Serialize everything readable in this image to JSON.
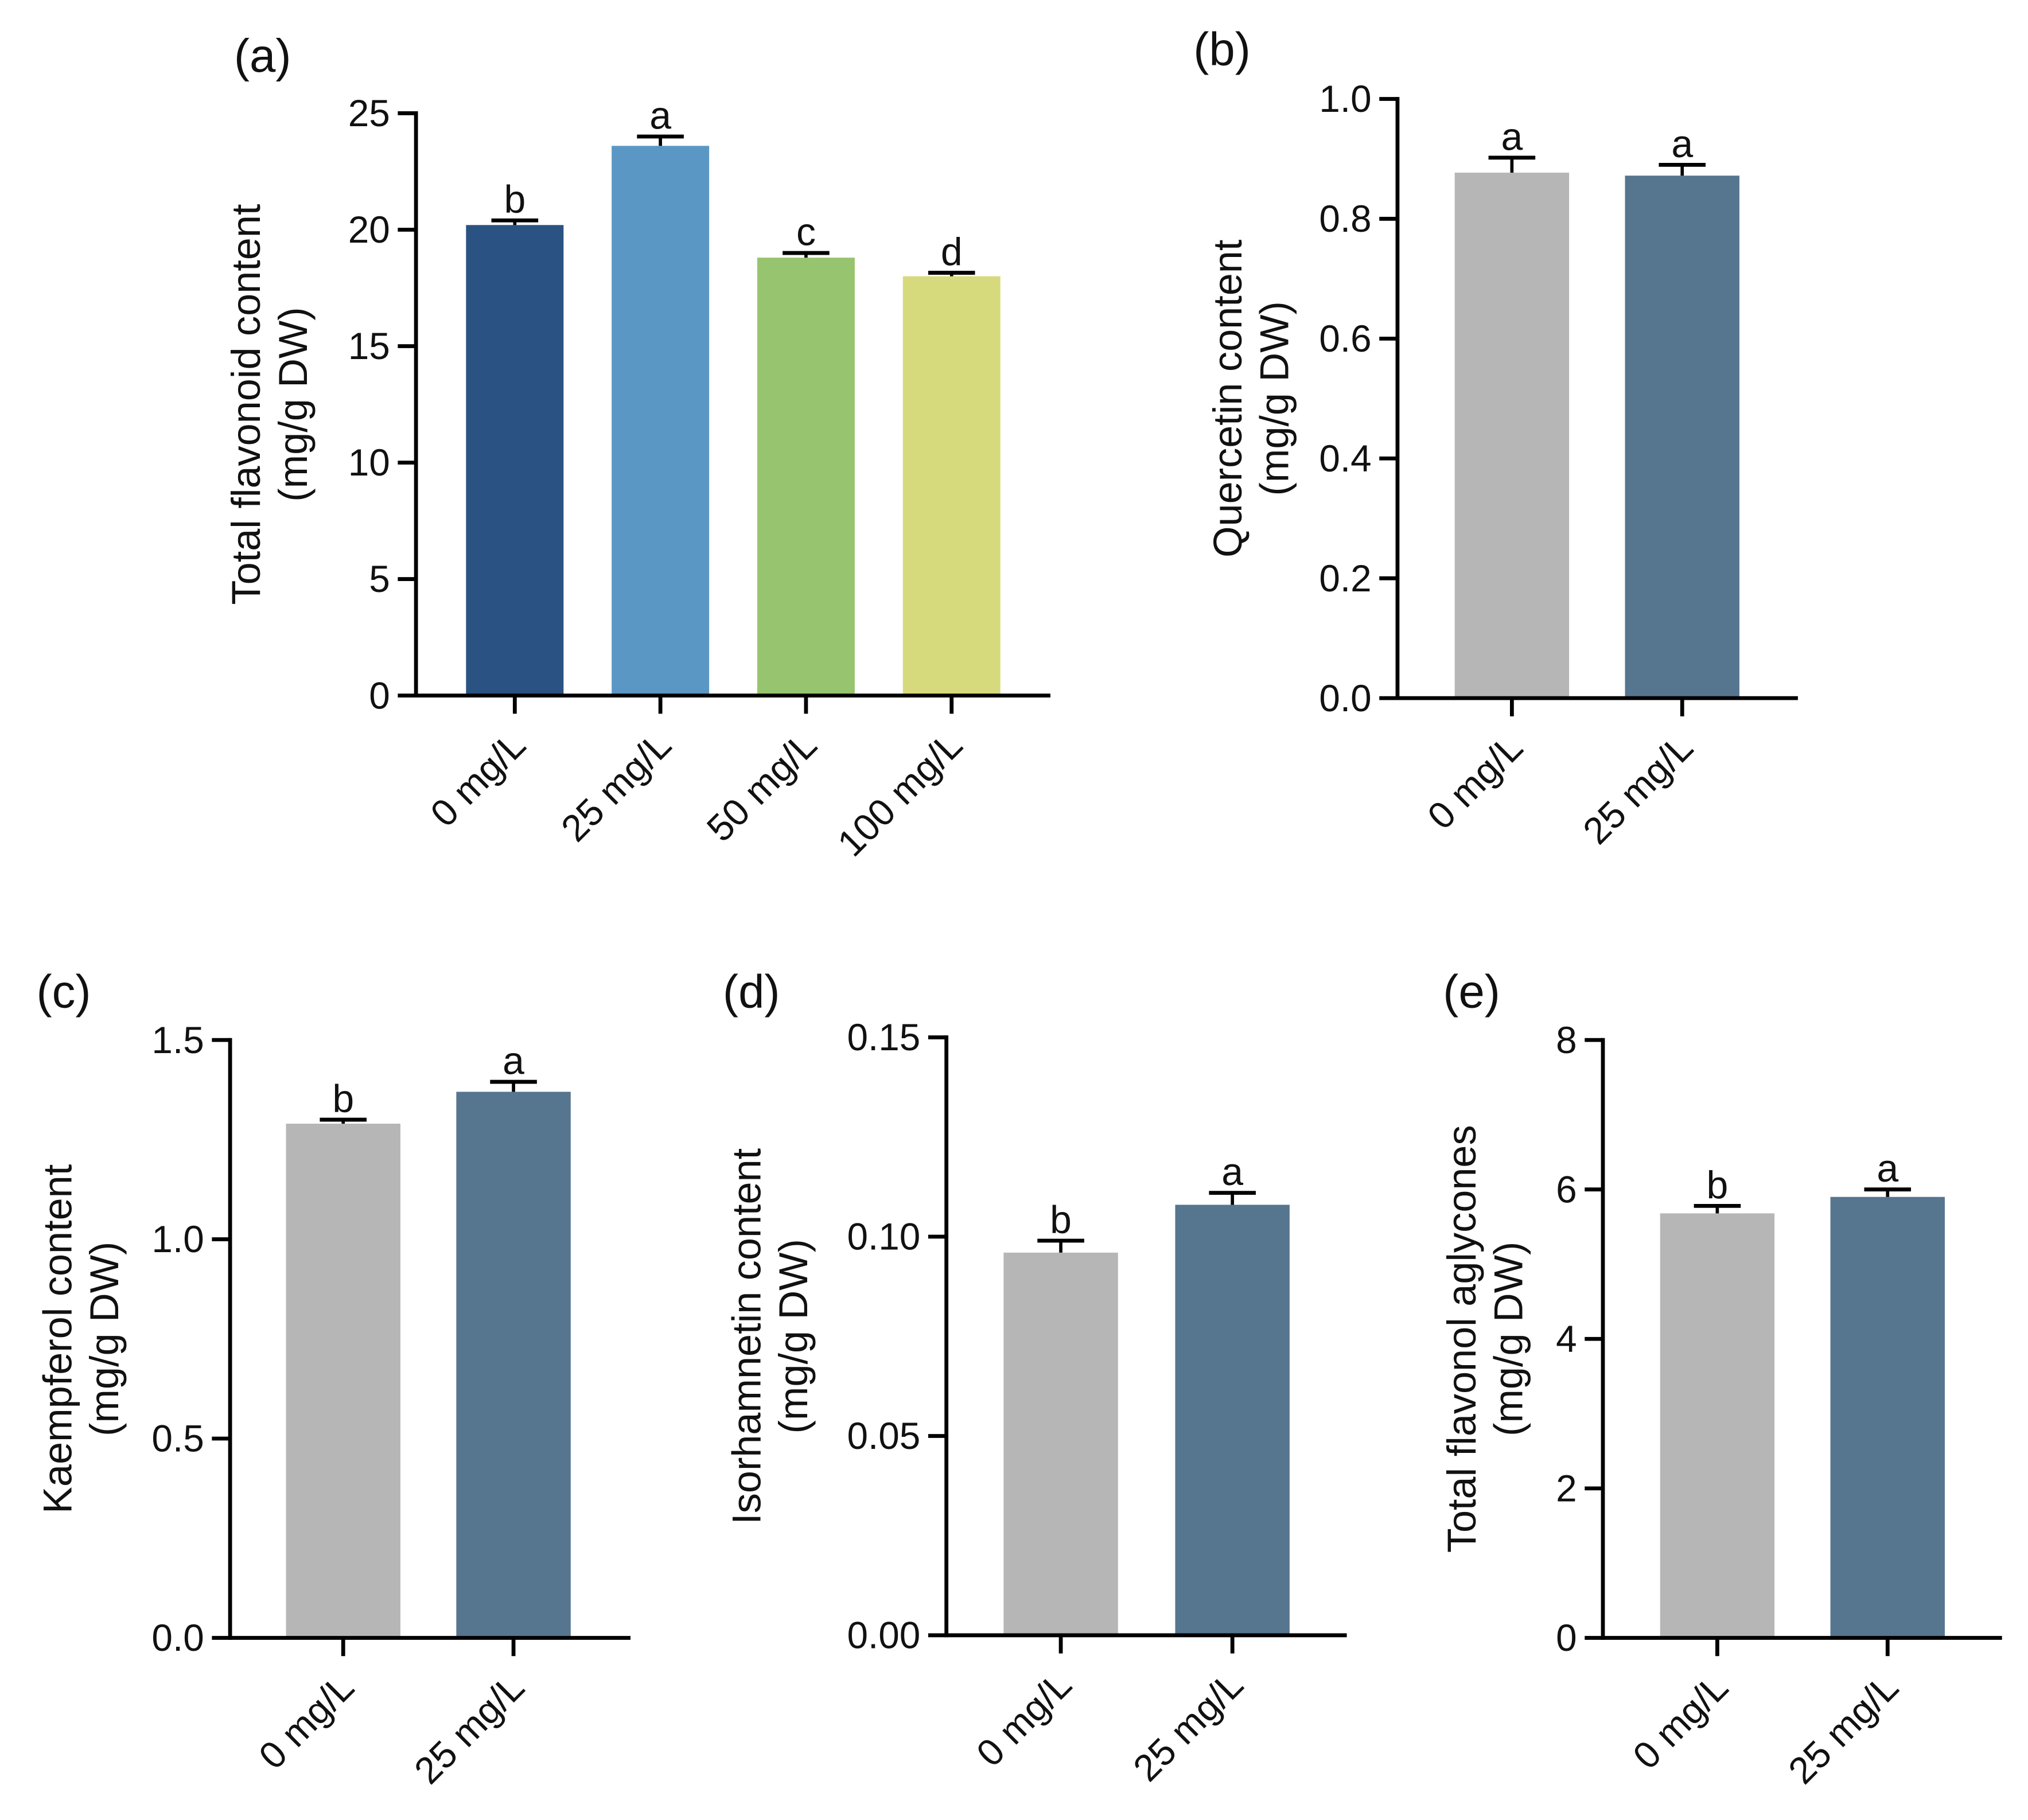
{
  "chart_data": [
    {
      "panel": "(a)",
      "type": "bar",
      "ylabel": [
        "Total flavonoid content",
        "(mg/g DW)"
      ],
      "categories": [
        "0 mg/L",
        "25 mg/L",
        "50 mg/L",
        "100 mg/L"
      ],
      "values": [
        20.2,
        23.6,
        18.8,
        18.0
      ],
      "errors": [
        0.2,
        0.4,
        0.2,
        0.15
      ],
      "letters": [
        "b",
        "a",
        "c",
        "d"
      ],
      "colors": [
        "#2a5282",
        "#5b97c4",
        "#97c46e",
        "#d7da7c"
      ],
      "ylim": [
        0,
        25
      ],
      "yticks": [
        0,
        5,
        10,
        15,
        20,
        25
      ],
      "ytick_labels": [
        "0",
        "5",
        "10",
        "15",
        "20",
        "25"
      ]
    },
    {
      "panel": "(b)",
      "type": "bar",
      "ylabel": [
        "Quercetin content",
        "(mg/g DW)"
      ],
      "categories": [
        "0 mg/L",
        "25 mg/L"
      ],
      "values": [
        0.877,
        0.872
      ],
      "errors": [
        0.025,
        0.018
      ],
      "letters": [
        "a",
        "a"
      ],
      "colors": [
        "#b5b6b5",
        "#56758f"
      ],
      "ylim": [
        0,
        1.0
      ],
      "yticks": [
        0,
        0.2,
        0.4,
        0.6,
        0.8,
        1.0
      ],
      "ytick_labels": [
        "0.0",
        "0.2",
        "0.4",
        "0.6",
        "0.8",
        "1.0"
      ]
    },
    {
      "panel": "(c)",
      "type": "bar",
      "ylabel": [
        "Kaempferol content",
        "(mg/g DW)"
      ],
      "categories": [
        "0 mg/L",
        "25 mg/L"
      ],
      "values": [
        1.29,
        1.37
      ],
      "errors": [
        0.01,
        0.025
      ],
      "letters": [
        "b",
        "a"
      ],
      "colors": [
        "#b5b6b5",
        "#56758f"
      ],
      "ylim": [
        0,
        1.5
      ],
      "yticks": [
        0,
        0.5,
        1.0,
        1.5
      ],
      "ytick_labels": [
        "0.0",
        "0.5",
        "1.0",
        "1.5"
      ]
    },
    {
      "panel": "(d)",
      "type": "bar",
      "ylabel": [
        "Isorhamnetin content",
        "(mg/g DW)"
      ],
      "categories": [
        "0 mg/L",
        "25 mg/L"
      ],
      "values": [
        0.096,
        0.108
      ],
      "errors": [
        0.003,
        0.003
      ],
      "letters": [
        "b",
        "a"
      ],
      "colors": [
        "#b5b6b5",
        "#56758f"
      ],
      "ylim": [
        0,
        0.15
      ],
      "yticks": [
        0,
        0.05,
        0.1,
        0.15
      ],
      "ytick_labels": [
        "0.00",
        "0.05",
        "0.10",
        "0.15"
      ]
    },
    {
      "panel": "(e)",
      "type": "bar",
      "ylabel": [
        "Total flavonol aglycones",
        "(mg/g DW)"
      ],
      "categories": [
        "0 mg/L",
        "25 mg/L"
      ],
      "values": [
        5.68,
        5.9
      ],
      "errors": [
        0.1,
        0.1
      ],
      "letters": [
        "b",
        "a"
      ],
      "colors": [
        "#b5b6b5",
        "#56758f"
      ],
      "ylim": [
        0,
        8
      ],
      "yticks": [
        0,
        2,
        4,
        6,
        8
      ],
      "ytick_labels": [
        "0",
        "2",
        "4",
        "6",
        "8"
      ]
    }
  ]
}
